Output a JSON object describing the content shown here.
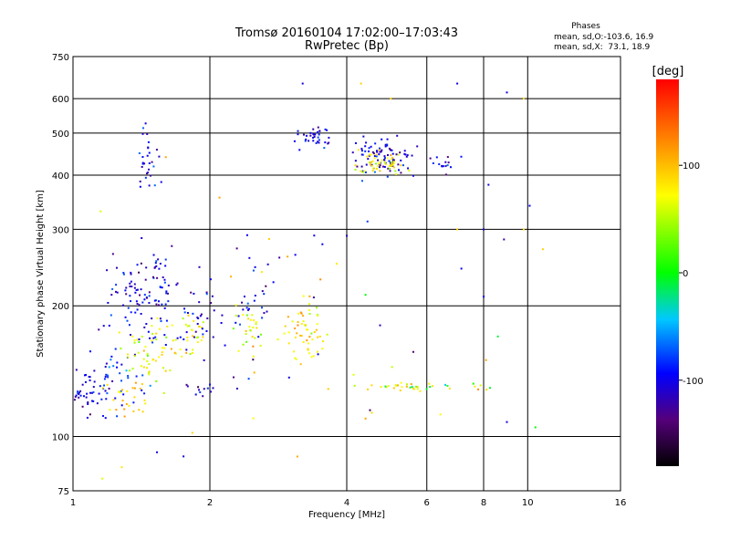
{
  "chart_data": {
    "type": "scatter",
    "title": "Tromsø 20160104 17:02:00–17:03:43",
    "subtitle": "RwPretec (Bp)",
    "xlabel": "Frequency [MHz]",
    "ylabel": "Stationary phase Virtual Height [km]",
    "x_scale": "log",
    "y_scale": "log",
    "xlim": [
      1,
      16
    ],
    "ylim": [
      75,
      750
    ],
    "x_ticks": [
      1,
      2,
      4,
      6,
      8,
      10,
      16
    ],
    "x_tick_labels": [
      "1",
      "2",
      "4",
      "6",
      "8",
      "10",
      "16"
    ],
    "y_ticks": [
      75,
      100,
      200,
      300,
      400,
      500,
      600,
      750
    ],
    "y_tick_labels": [
      "75",
      "100",
      "200",
      "300",
      "400",
      "500",
      "600",
      "750"
    ],
    "grid": true,
    "phase_stats": {
      "title": "Phases",
      "line1": "mean, sd,O:-103.6, 16.9",
      "line2": "mean, sd,X:  73.1, 18.9"
    },
    "colorbar": {
      "label": "[deg]",
      "range": [
        -180,
        180
      ],
      "ticks": [
        100,
        0,
        -100
      ],
      "tick_labels": [
        "100",
        "0",
        "-100"
      ]
    },
    "clusters": [
      {
        "x": 1.05,
        "y": 125,
        "phase": -110,
        "n": 45,
        "sx": 0.06,
        "sy": 0.06
      },
      {
        "x": 1.25,
        "y": 135,
        "phase": -95,
        "n": 45,
        "sx": 0.07,
        "sy": 0.08
      },
      {
        "x": 1.35,
        "y": 200,
        "phase": -105,
        "n": 50,
        "sx": 0.07,
        "sy": 0.12
      },
      {
        "x": 1.5,
        "y": 155,
        "phase": 60,
        "n": 50,
        "sx": 0.08,
        "sy": 0.08
      },
      {
        "x": 1.55,
        "y": 210,
        "phase": -110,
        "n": 60,
        "sx": 0.06,
        "sy": 0.12
      },
      {
        "x": 1.3,
        "y": 120,
        "phase": 90,
        "n": 25,
        "sx": 0.06,
        "sy": 0.05
      },
      {
        "x": 1.45,
        "y": 430,
        "phase": -110,
        "n": 30,
        "sx": 0.03,
        "sy": 0.09
      },
      {
        "x": 1.8,
        "y": 170,
        "phase": 70,
        "n": 30,
        "sx": 0.05,
        "sy": 0.07
      },
      {
        "x": 1.9,
        "y": 190,
        "phase": -110,
        "n": 35,
        "sx": 0.06,
        "sy": 0.12
      },
      {
        "x": 1.9,
        "y": 128,
        "phase": -110,
        "n": 12,
        "sx": 0.04,
        "sy": 0.02
      },
      {
        "x": 2.5,
        "y": 200,
        "phase": -105,
        "n": 25,
        "sx": 0.05,
        "sy": 0.1
      },
      {
        "x": 2.5,
        "y": 180,
        "phase": 60,
        "n": 25,
        "sx": 0.05,
        "sy": 0.07
      },
      {
        "x": 3.2,
        "y": 180,
        "phase": 80,
        "n": 55,
        "sx": 0.05,
        "sy": 0.08
      },
      {
        "x": 3.4,
        "y": 490,
        "phase": -105,
        "n": 35,
        "sx": 0.04,
        "sy": 0.03
      },
      {
        "x": 4.8,
        "y": 440,
        "phase": -110,
        "n": 90,
        "sx": 0.07,
        "sy": 0.05
      },
      {
        "x": 4.8,
        "y": 425,
        "phase": 70,
        "n": 50,
        "sx": 0.07,
        "sy": 0.03
      },
      {
        "x": 6.5,
        "y": 430,
        "phase": -100,
        "n": 15,
        "sx": 0.04,
        "sy": 0.03
      },
      {
        "x": 5.5,
        "y": 130,
        "phase": 80,
        "n": 30,
        "sx": 0.18,
        "sy": 0.01
      },
      {
        "x": 6.0,
        "y": 130,
        "phase": -10,
        "n": 10,
        "sx": 0.15,
        "sy": 0.01
      },
      {
        "x": 4.0,
        "y": 250,
        "phase": -110,
        "n": 20,
        "sx": 0.35,
        "sy": 0.35
      },
      {
        "x": 3.0,
        "y": 160,
        "phase": 90,
        "n": 15,
        "sx": 0.3,
        "sy": 0.3
      }
    ],
    "points": [
      [
        9.0,
        620,
        -110
      ],
      [
        7.0,
        650,
        -110
      ],
      [
        5.0,
        600,
        90
      ],
      [
        4.3,
        650,
        90
      ],
      [
        9.8,
        600,
        90
      ],
      [
        10.1,
        340,
        -100
      ],
      [
        9.8,
        300,
        90
      ],
      [
        10.8,
        270,
        90
      ],
      [
        8.2,
        380,
        -110
      ],
      [
        8.0,
        300,
        -110
      ],
      [
        7.0,
        300,
        90
      ],
      [
        8.0,
        210,
        -100
      ],
      [
        8.1,
        150,
        110
      ],
      [
        8.6,
        170,
        -10
      ],
      [
        9.0,
        108,
        -110
      ],
      [
        10.4,
        105,
        0
      ],
      [
        4.5,
        115,
        -150
      ],
      [
        4.4,
        110,
        110
      ],
      [
        4.0,
        290,
        -120
      ],
      [
        4.4,
        212,
        0
      ],
      [
        3.8,
        250,
        80
      ],
      [
        3.5,
        230,
        120
      ],
      [
        2.7,
        285,
        90
      ],
      [
        1.28,
        85,
        80
      ],
      [
        1.53,
        92,
        -110
      ],
      [
        1.75,
        90,
        -110
      ],
      [
        1.16,
        80,
        60
      ],
      [
        1.83,
        102,
        90
      ],
      [
        2.1,
        355,
        110
      ],
      [
        1.6,
        440,
        110
      ],
      [
        3.2,
        650,
        -110
      ],
      [
        1.15,
        330,
        60
      ]
    ]
  }
}
